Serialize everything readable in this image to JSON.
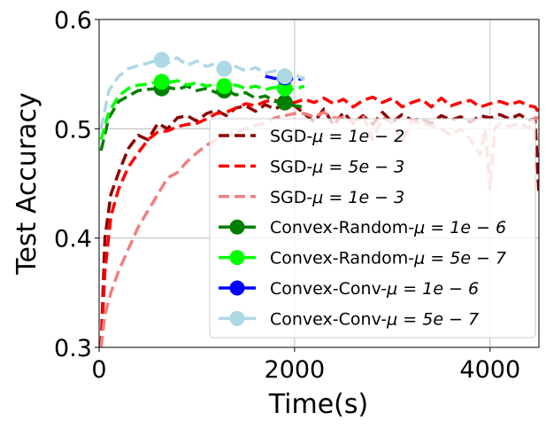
{
  "chart_data": {
    "type": "line",
    "xlabel": "Time(s)",
    "ylabel": "Test Accuracy",
    "xlim": [
      0,
      4500
    ],
    "ylim": [
      0.3,
      0.6
    ],
    "x_ticks": [
      {
        "value": 0,
        "label": "0"
      },
      {
        "value": 2000,
        "label": "2000"
      },
      {
        "value": 4000,
        "label": "4000"
      }
    ],
    "y_ticks": [
      {
        "value": 0.3,
        "label": "0.3"
      },
      {
        "value": 0.4,
        "label": "0.4"
      },
      {
        "value": 0.5,
        "label": "0.5"
      },
      {
        "value": 0.6,
        "label": "0.6"
      }
    ],
    "grid": true,
    "legend_position": "bottom-right",
    "series": [
      {
        "name": "SGD-μ = 1e − 2",
        "legend_main": "SGD-",
        "legend_math": "μ = 1e − 2",
        "color": "#8b0000",
        "style": "dashed",
        "marker": "none",
        "points": [
          [
            20,
            0.3
          ],
          [
            60,
            0.4
          ],
          [
            120,
            0.44
          ],
          [
            200,
            0.46
          ],
          [
            300,
            0.482
          ],
          [
            400,
            0.494
          ],
          [
            500,
            0.49
          ],
          [
            600,
            0.505
          ],
          [
            700,
            0.5
          ],
          [
            800,
            0.51
          ],
          [
            900,
            0.512
          ],
          [
            1000,
            0.507
          ],
          [
            1100,
            0.514
          ],
          [
            1200,
            0.517
          ],
          [
            1300,
            0.512
          ],
          [
            1400,
            0.519
          ],
          [
            1500,
            0.521
          ],
          [
            1600,
            0.516
          ],
          [
            1700,
            0.522
          ],
          [
            1800,
            0.518
          ],
          [
            1900,
            0.523
          ],
          [
            2000,
            0.521
          ],
          [
            2100,
            0.514
          ],
          [
            2200,
            0.506
          ],
          [
            2300,
            0.518
          ],
          [
            2400,
            0.503
          ],
          [
            2500,
            0.515
          ],
          [
            2600,
            0.505
          ],
          [
            2700,
            0.512
          ],
          [
            2800,
            0.504
          ],
          [
            2900,
            0.515
          ],
          [
            3000,
            0.506
          ],
          [
            3100,
            0.513
          ],
          [
            3200,
            0.508
          ],
          [
            3300,
            0.509
          ],
          [
            3400,
            0.505
          ],
          [
            3500,
            0.512
          ],
          [
            3600,
            0.508
          ],
          [
            3700,
            0.511
          ],
          [
            3800,
            0.506
          ],
          [
            3900,
            0.512
          ],
          [
            4000,
            0.51
          ],
          [
            4100,
            0.513
          ],
          [
            4200,
            0.509
          ],
          [
            4300,
            0.513
          ],
          [
            4400,
            0.508
          ],
          [
            4460,
            0.509
          ],
          [
            4500,
            0.44
          ]
        ]
      },
      {
        "name": "SGD-μ = 5e − 3",
        "legend_main": "SGD-",
        "legend_math": "μ = 5e − 3",
        "color": "#ff0000",
        "style": "dashed",
        "marker": "none",
        "points": [
          [
            20,
            0.3
          ],
          [
            60,
            0.37
          ],
          [
            120,
            0.42
          ],
          [
            200,
            0.445
          ],
          [
            300,
            0.465
          ],
          [
            400,
            0.478
          ],
          [
            500,
            0.49
          ],
          [
            600,
            0.497
          ],
          [
            700,
            0.498
          ],
          [
            800,
            0.502
          ],
          [
            900,
            0.504
          ],
          [
            1000,
            0.505
          ],
          [
            1100,
            0.509
          ],
          [
            1200,
            0.514
          ],
          [
            1300,
            0.515
          ],
          [
            1400,
            0.519
          ],
          [
            1500,
            0.523
          ],
          [
            1600,
            0.521
          ],
          [
            1700,
            0.525
          ],
          [
            1800,
            0.526
          ],
          [
            1900,
            0.524
          ],
          [
            2000,
            0.524
          ],
          [
            2100,
            0.527
          ],
          [
            2200,
            0.524
          ],
          [
            2300,
            0.528
          ],
          [
            2400,
            0.523
          ],
          [
            2500,
            0.527
          ],
          [
            2600,
            0.52
          ],
          [
            2700,
            0.526
          ],
          [
            2800,
            0.529
          ],
          [
            2900,
            0.524
          ],
          [
            3000,
            0.528
          ],
          [
            3100,
            0.52
          ],
          [
            3200,
            0.524
          ],
          [
            3300,
            0.527
          ],
          [
            3400,
            0.52
          ],
          [
            3500,
            0.528
          ],
          [
            3600,
            0.521
          ],
          [
            3700,
            0.524
          ],
          [
            3800,
            0.526
          ],
          [
            3900,
            0.52
          ],
          [
            4000,
            0.523
          ],
          [
            4100,
            0.525
          ],
          [
            4200,
            0.522
          ],
          [
            4300,
            0.525
          ],
          [
            4400,
            0.521
          ],
          [
            4460,
            0.52
          ],
          [
            4500,
            0.515
          ]
        ]
      },
      {
        "name": "SGD-μ = 1e − 3",
        "legend_main": "SGD-",
        "legend_math": "μ = 1e − 3",
        "color": "#f08080",
        "style": "dashed",
        "marker": "none",
        "points": [
          [
            20,
            0.3
          ],
          [
            60,
            0.33
          ],
          [
            120,
            0.35
          ],
          [
            200,
            0.37
          ],
          [
            300,
            0.39
          ],
          [
            400,
            0.41
          ],
          [
            500,
            0.425
          ],
          [
            600,
            0.44
          ],
          [
            700,
            0.455
          ],
          [
            800,
            0.46
          ],
          [
            900,
            0.47
          ],
          [
            1000,
            0.478
          ],
          [
            1100,
            0.485
          ],
          [
            1200,
            0.49
          ],
          [
            1300,
            0.494
          ],
          [
            1400,
            0.497
          ],
          [
            1500,
            0.5
          ],
          [
            1600,
            0.503
          ],
          [
            1700,
            0.505
          ],
          [
            1800,
            0.51
          ],
          [
            1900,
            0.512
          ],
          [
            2000,
            0.514
          ],
          [
            2100,
            0.514
          ],
          [
            2200,
            0.511
          ],
          [
            2300,
            0.515
          ],
          [
            2400,
            0.51
          ],
          [
            2500,
            0.51
          ],
          [
            2600,
            0.506
          ],
          [
            2700,
            0.512
          ],
          [
            2800,
            0.49
          ],
          [
            2900,
            0.51
          ],
          [
            3000,
            0.505
          ],
          [
            3100,
            0.488
          ],
          [
            3200,
            0.507
          ],
          [
            3300,
            0.505
          ],
          [
            3400,
            0.503
          ],
          [
            3500,
            0.5
          ],
          [
            3600,
            0.494
          ],
          [
            3700,
            0.5
          ],
          [
            3800,
            0.49
          ],
          [
            3900,
            0.476
          ],
          [
            3950,
            0.5
          ],
          [
            4000,
            0.445
          ],
          [
            4050,
            0.5
          ],
          [
            4100,
            0.505
          ],
          [
            4200,
            0.502
          ],
          [
            4300,
            0.505
          ],
          [
            4400,
            0.5
          ],
          [
            4460,
            0.51
          ],
          [
            4500,
            0.51
          ]
        ]
      },
      {
        "name": "Convex-Random-μ = 1e − 6",
        "legend_main": "Convex-Random-",
        "legend_math": "μ = 1e − 6",
        "color": "#008000",
        "style": "dashed",
        "marker": "circle",
        "marker_points": [
          [
            640,
            0.537
          ],
          [
            1280,
            0.535
          ],
          [
            1900,
            0.524
          ]
        ],
        "points": [
          [
            20,
            0.48
          ],
          [
            100,
            0.51
          ],
          [
            200,
            0.525
          ],
          [
            300,
            0.53
          ],
          [
            400,
            0.535
          ],
          [
            500,
            0.536
          ],
          [
            600,
            0.537
          ],
          [
            700,
            0.538
          ],
          [
            800,
            0.536
          ],
          [
            900,
            0.539
          ],
          [
            1000,
            0.535
          ],
          [
            1100,
            0.537
          ],
          [
            1200,
            0.533
          ],
          [
            1300,
            0.535
          ],
          [
            1400,
            0.531
          ],
          [
            1500,
            0.533
          ],
          [
            1600,
            0.528
          ],
          [
            1700,
            0.53
          ],
          [
            1800,
            0.525
          ],
          [
            1900,
            0.524
          ],
          [
            2000,
            0.521
          ],
          [
            2100,
            0.52
          ]
        ]
      },
      {
        "name": "Convex-Random-μ = 5e − 7",
        "legend_main": "Convex-Random-",
        "legend_math": "μ = 5e − 7",
        "color": "#00ff00",
        "style": "dashed",
        "marker": "circle",
        "marker_points": [
          [
            640,
            0.543
          ],
          [
            1280,
            0.539
          ],
          [
            1900,
            0.537
          ]
        ],
        "points": [
          [
            20,
            0.49
          ],
          [
            100,
            0.515
          ],
          [
            200,
            0.53
          ],
          [
            300,
            0.537
          ],
          [
            400,
            0.54
          ],
          [
            500,
            0.541
          ],
          [
            600,
            0.543
          ],
          [
            700,
            0.542
          ],
          [
            800,
            0.544
          ],
          [
            900,
            0.54
          ],
          [
            1000,
            0.542
          ],
          [
            1100,
            0.539
          ],
          [
            1200,
            0.541
          ],
          [
            1300,
            0.539
          ],
          [
            1400,
            0.54
          ],
          [
            1500,
            0.537
          ],
          [
            1600,
            0.539
          ],
          [
            1700,
            0.536
          ],
          [
            1800,
            0.538
          ],
          [
            1900,
            0.537
          ],
          [
            2000,
            0.536
          ],
          [
            2100,
            0.539
          ]
        ]
      },
      {
        "name": "Convex-Conv-μ = 1e − 6",
        "legend_main": "Convex-Conv-",
        "legend_math": "μ = 1e − 6",
        "color": "#0000ff",
        "style": "dashed",
        "marker": "circle",
        "marker_points": [
          [
            1900,
            0.547
          ]
        ],
        "points": [
          [
            1700,
            0.548
          ],
          [
            1800,
            0.546
          ],
          [
            1900,
            0.547
          ],
          [
            2000,
            0.545
          ],
          [
            2100,
            0.546
          ]
        ]
      },
      {
        "name": "Convex-Conv-μ = 5e − 7",
        "legend_main": "Convex-Conv-",
        "legend_math": "μ = 5e − 7",
        "color": "#add8e6",
        "style": "dashed",
        "marker": "circle",
        "marker_points": [
          [
            640,
            0.563
          ],
          [
            1280,
            0.555
          ],
          [
            1900,
            0.548
          ]
        ],
        "points": [
          [
            20,
            0.5
          ],
          [
            100,
            0.535
          ],
          [
            200,
            0.548
          ],
          [
            300,
            0.555
          ],
          [
            400,
            0.558
          ],
          [
            500,
            0.56
          ],
          [
            600,
            0.563
          ],
          [
            700,
            0.56
          ],
          [
            800,
            0.565
          ],
          [
            900,
            0.558
          ],
          [
            1000,
            0.562
          ],
          [
            1100,
            0.557
          ],
          [
            1200,
            0.56
          ],
          [
            1300,
            0.555
          ],
          [
            1400,
            0.557
          ],
          [
            1500,
            0.553
          ],
          [
            1600,
            0.556
          ],
          [
            1700,
            0.551
          ],
          [
            1800,
            0.553
          ],
          [
            1900,
            0.548
          ],
          [
            2000,
            0.55
          ],
          [
            2100,
            0.545
          ]
        ]
      }
    ]
  }
}
